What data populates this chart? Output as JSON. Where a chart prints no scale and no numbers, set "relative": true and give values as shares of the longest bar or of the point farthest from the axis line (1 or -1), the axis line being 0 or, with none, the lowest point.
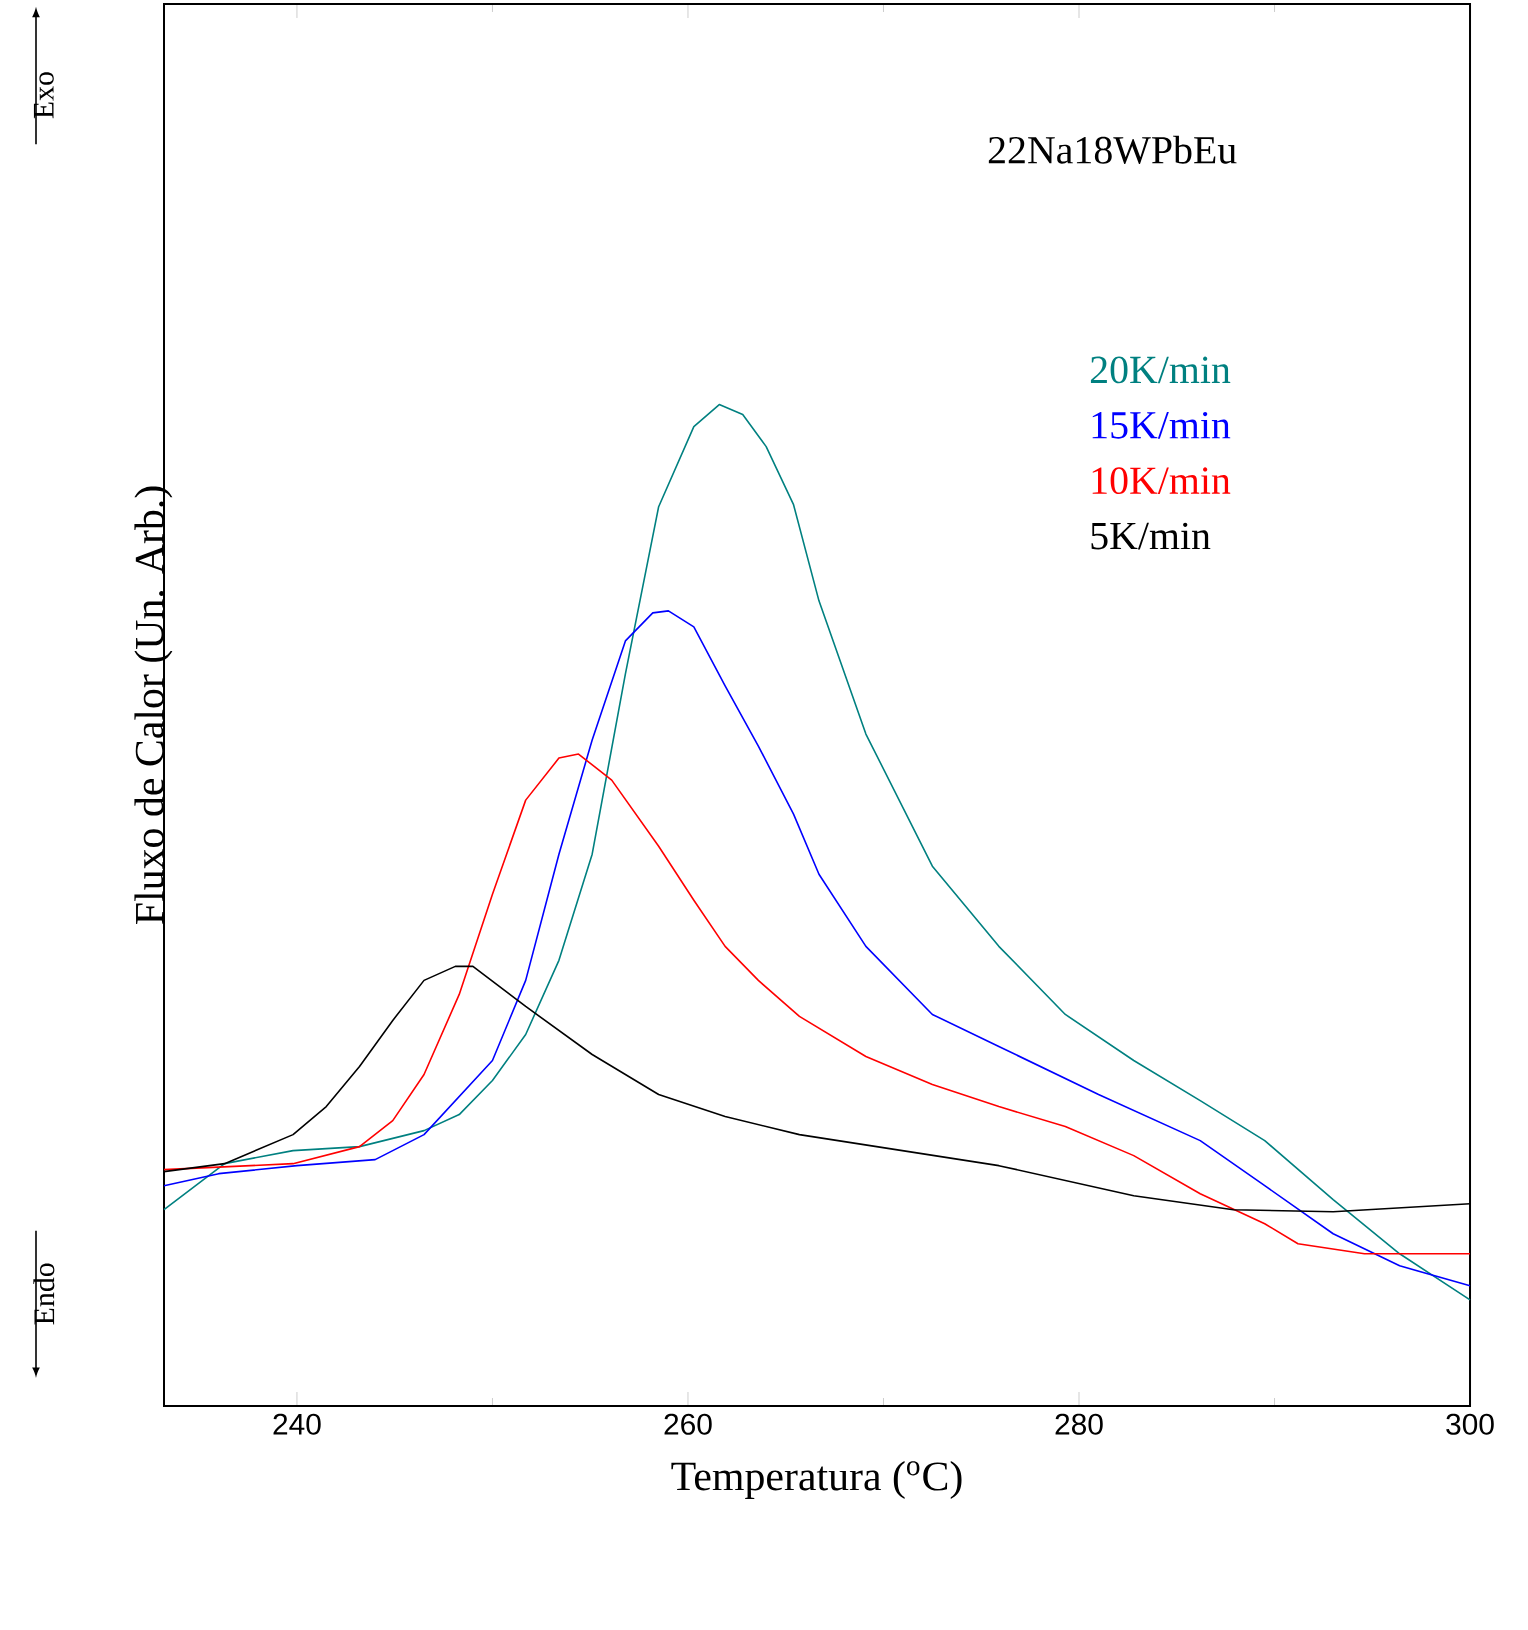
{
  "chart_data": {
    "type": "line",
    "relative": true,
    "xlabel": "Temperatura ($^{o}$C)",
    "ylabel": "Fluxo de Calor (Un. Arb.)",
    "annotations": [
      "22Na18WPbEu",
      "Exo",
      "Endo"
    ],
    "xlim": [
      233.2,
      300
    ],
    "xticks": [
      240,
      260,
      280,
      300
    ],
    "legend": "top right",
    "grid": false,
    "marker": "none",
    "line_style": "solid",
    "series": [
      {
        "name": "20K/min",
        "color": "#008080",
        "x": [
          233.2,
          236.3,
          239.8,
          243.2,
          246.5,
          248.3,
          250,
          251.7,
          253.4,
          255.1,
          256.8,
          258.5,
          260.3,
          261.6,
          262.8,
          264,
          265.4,
          266.7,
          269.1,
          272.5,
          275.9,
          279.3,
          282.8,
          286.2,
          289.5,
          293,
          296.4,
          300
        ],
        "values": [
          0.196,
          0.242,
          0.255,
          0.259,
          0.275,
          0.291,
          0.325,
          0.371,
          0.445,
          0.551,
          0.731,
          0.898,
          0.978,
          1.0,
          0.99,
          0.958,
          0.9,
          0.804,
          0.671,
          0.539,
          0.459,
          0.391,
          0.345,
          0.305,
          0.265,
          0.206,
          0.152,
          0.106
        ]
      },
      {
        "name": "15K/min",
        "color": "#0000ff",
        "x": [
          233.2,
          236,
          240,
          244,
          246.5,
          250,
          251.7,
          253.4,
          255.1,
          256.8,
          258.2,
          259,
          260.3,
          261.9,
          263.6,
          265.4,
          266.7,
          269.1,
          272.5,
          275.9,
          281,
          286.2,
          289.5,
          293,
          296.4,
          300
        ],
        "values": [
          0.22,
          0.232,
          0.24,
          0.246,
          0.271,
          0.345,
          0.425,
          0.551,
          0.665,
          0.764,
          0.792,
          0.794,
          0.778,
          0.719,
          0.659,
          0.591,
          0.531,
          0.459,
          0.391,
          0.359,
          0.311,
          0.265,
          0.22,
          0.172,
          0.14,
          0.12
        ]
      },
      {
        "name": "10K/min",
        "color": "#ff0000",
        "x": [
          233.2,
          239.8,
          243.2,
          244.9,
          246.5,
          248.3,
          250,
          251.7,
          253.4,
          254.4,
          256.1,
          258.5,
          260.3,
          261.9,
          263.6,
          265.7,
          269.1,
          272.5,
          275.9,
          279.3,
          282.8,
          286.2,
          289.5,
          291.2,
          294.6,
          300
        ],
        "values": [
          0.236,
          0.242,
          0.259,
          0.285,
          0.331,
          0.411,
          0.511,
          0.605,
          0.647,
          0.651,
          0.625,
          0.559,
          0.505,
          0.459,
          0.425,
          0.389,
          0.349,
          0.321,
          0.299,
          0.279,
          0.25,
          0.212,
          0.182,
          0.162,
          0.152,
          0.152
        ]
      },
      {
        "name": "5K/min",
        "color": "#000000",
        "x": [
          233.2,
          236.3,
          239.8,
          241.5,
          243.2,
          244.9,
          246.5,
          248.1,
          249,
          251.7,
          255.1,
          258.5,
          261.9,
          265.7,
          275.9,
          282.8,
          287.9,
          293,
          300
        ],
        "values": [
          0.234,
          0.242,
          0.271,
          0.299,
          0.339,
          0.385,
          0.425,
          0.439,
          0.439,
          0.399,
          0.351,
          0.311,
          0.289,
          0.271,
          0.24,
          0.21,
          0.196,
          0.194,
          0.202
        ]
      }
    ]
  }
}
